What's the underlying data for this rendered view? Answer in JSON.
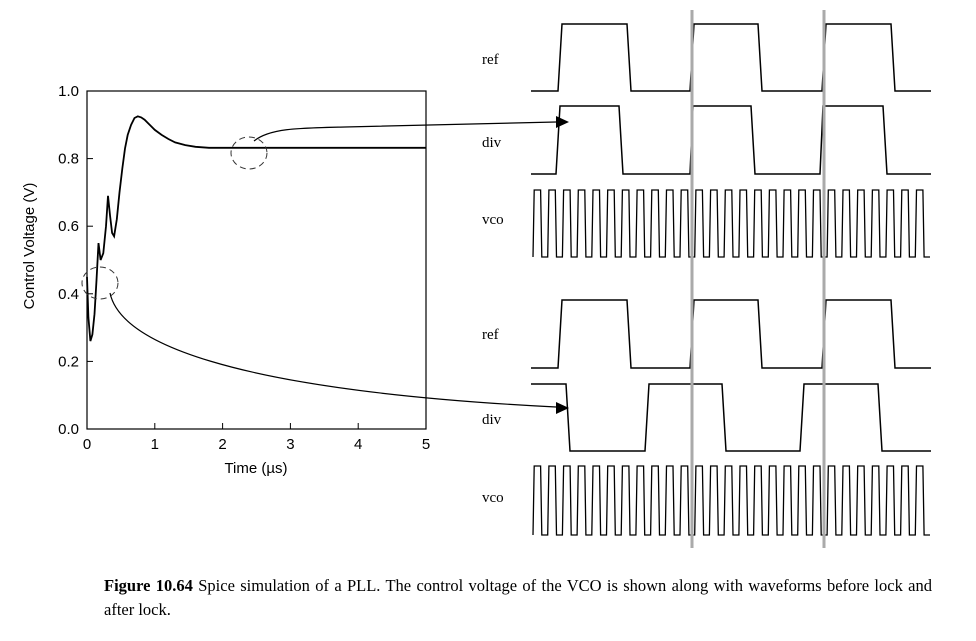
{
  "chart_data": {
    "type": "line",
    "xlabel": "Time (µs)",
    "ylabel": "Control Voltage (V)",
    "xlim": [
      0,
      5
    ],
    "ylim": [
      0.0,
      1.0
    ],
    "x_ticks": [
      "0",
      "1",
      "2",
      "3",
      "4",
      "5"
    ],
    "y_ticks": [
      "0.0",
      "0.2",
      "0.4",
      "0.6",
      "0.8",
      "1.0"
    ],
    "grid": false,
    "series": [
      {
        "x": [
          0,
          0.02,
          0.05,
          0.08,
          0.11,
          0.14,
          0.17,
          0.2,
          0.24,
          0.28,
          0.31,
          0.34,
          0.37,
          0.4,
          0.44,
          0.48,
          0.52,
          0.56,
          0.6,
          0.65,
          0.7,
          0.75,
          0.8,
          0.85,
          0.9,
          0.95,
          1.0,
          1.1,
          1.2,
          1.3,
          1.45,
          1.6,
          1.8,
          2.0,
          2.2,
          2.6,
          3.0,
          4.0,
          5.0
        ],
        "y": [
          0.45,
          0.33,
          0.26,
          0.28,
          0.34,
          0.44,
          0.55,
          0.5,
          0.52,
          0.6,
          0.69,
          0.63,
          0.58,
          0.57,
          0.62,
          0.7,
          0.77,
          0.83,
          0.87,
          0.9,
          0.92,
          0.925,
          0.922,
          0.915,
          0.905,
          0.895,
          0.885,
          0.87,
          0.858,
          0.848,
          0.84,
          0.835,
          0.832,
          0.832,
          0.832,
          0.832,
          0.832,
          0.832,
          0.832
        ]
      }
    ]
  },
  "timing": {
    "after_lock": [
      {
        "label": "ref",
        "pattern": "ref"
      },
      {
        "label": "div",
        "pattern": "div_locked"
      },
      {
        "label": "vco",
        "pattern": "vco"
      }
    ],
    "before_lock": [
      {
        "label": "ref",
        "pattern": "ref"
      },
      {
        "label": "div",
        "pattern": "div_unlocked"
      },
      {
        "label": "vco",
        "pattern": "vco"
      }
    ]
  },
  "caption": {
    "label": "Figure 10.64",
    "text": " Spice simulation of a PLL. The control voltage of the VCO is shown along with waveforms before lock and after lock."
  }
}
